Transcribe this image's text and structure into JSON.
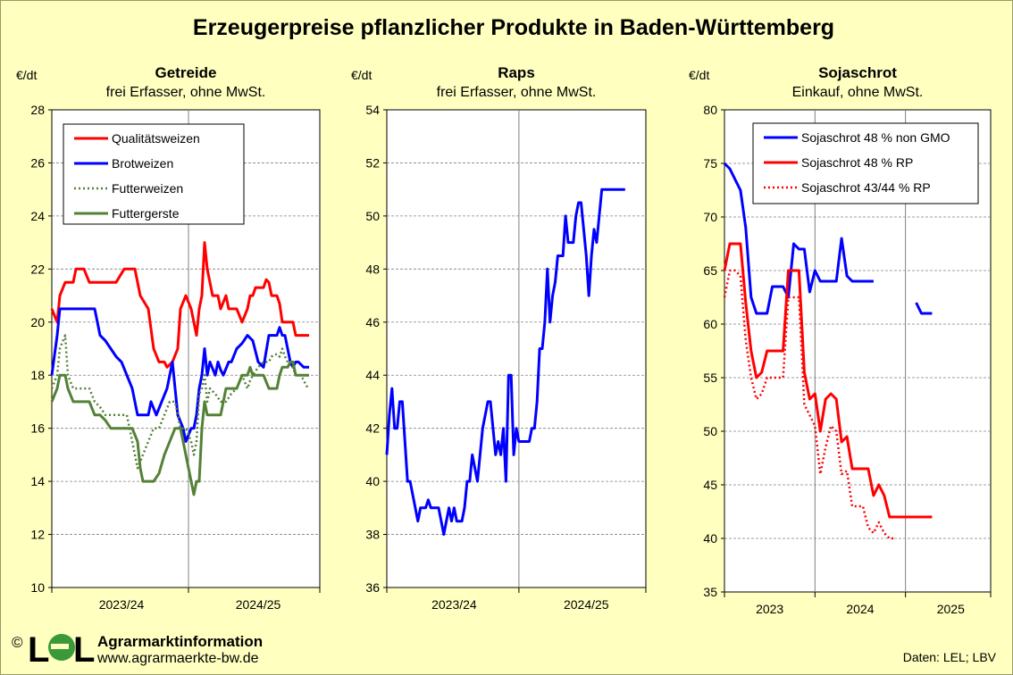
{
  "title": "Erzeugerpreise pflanzlicher Produkte in Baden-Württemberg",
  "footer": {
    "copyright": "©",
    "logo_left": "L",
    "logo_right": "L",
    "org": "Agrarmarktinformation",
    "url": "www.agrarmaerkte-bw.de",
    "source": "Daten: LEL; LBV"
  },
  "colors": {
    "background": "#ffffc0",
    "plot_background": "#ffffff",
    "red": "#ff0000",
    "blue": "#0000ff",
    "green": "#538135",
    "logo_green": "#3a9a3a"
  },
  "chart_data": [
    {
      "type": "line",
      "title": "Getreide",
      "subtitle": "frei Erfasser, ohne MwSt.",
      "ylabel": "€/dt",
      "ylim": [
        10,
        28
      ],
      "yticks": [
        10,
        12,
        14,
        16,
        18,
        20,
        22,
        24,
        26,
        28
      ],
      "xlim": [
        0,
        100
      ],
      "categories": [
        {
          "label": "2023/24",
          "x": 26
        },
        {
          "label": "2024/25",
          "x": 77
        }
      ],
      "gridlines_x": [
        51
      ],
      "grid": true,
      "legend_position": "top-left",
      "series": [
        {
          "name": "Qualitätsweizen",
          "color": "#ff0000",
          "dash": "solid",
          "width": 3,
          "x": [
            0,
            2,
            3,
            5,
            8,
            9,
            12,
            14,
            17,
            18,
            21,
            24,
            27,
            31,
            33,
            36,
            38,
            40,
            42,
            43,
            45,
            47,
            48,
            50,
            52,
            53,
            54,
            55,
            56,
            57,
            58,
            60,
            62,
            63,
            65,
            66,
            68,
            69,
            71,
            73,
            74,
            75,
            76,
            78,
            79,
            80,
            81,
            82,
            84,
            85,
            86,
            87,
            88,
            89,
            90,
            91,
            93,
            94,
            95,
            96
          ],
          "y": [
            20.5,
            20,
            21,
            21.5,
            21.5,
            22,
            22,
            21.5,
            21.5,
            21.5,
            21.5,
            21.5,
            22,
            22,
            21,
            20.5,
            19,
            18.5,
            18.5,
            18.3,
            18.5,
            19,
            20.5,
            21,
            20.5,
            20,
            19.5,
            20.5,
            21,
            23,
            22,
            21,
            21,
            20.5,
            21,
            20.5,
            20.5,
            20.5,
            20,
            20.5,
            21,
            21,
            21.3,
            21.3,
            21.3,
            21.6,
            21.5,
            21,
            21,
            20.7,
            20,
            20,
            20,
            20,
            20,
            19.5,
            19.5,
            19.5,
            19.5,
            19.5
          ]
        },
        {
          "name": "Brotweizen",
          "color": "#0000ff",
          "dash": "solid",
          "width": 3,
          "x": [
            0,
            2,
            3,
            5,
            8,
            9,
            12,
            14,
            16,
            18,
            20,
            22,
            24,
            26,
            28,
            30,
            32,
            34,
            36,
            37,
            39,
            41,
            43,
            45,
            47,
            49,
            50,
            52,
            53,
            54,
            55,
            56,
            57,
            58,
            59,
            61,
            62,
            63,
            64,
            66,
            67,
            69,
            71,
            73,
            75,
            77,
            79,
            81,
            82,
            84,
            85,
            86,
            87,
            88,
            89,
            90,
            91,
            92,
            94,
            95,
            96
          ],
          "y": [
            18,
            19.5,
            20.5,
            20.5,
            20.5,
            20.5,
            20.5,
            20.5,
            20.5,
            19.5,
            19.3,
            19,
            18.7,
            18.5,
            18,
            17.5,
            16.5,
            16.5,
            16.5,
            17,
            16.5,
            17,
            17.5,
            18.5,
            16.5,
            16,
            15.5,
            16,
            16,
            16.5,
            17.5,
            18,
            19,
            18,
            18.5,
            18,
            18.5,
            18.2,
            18,
            18.5,
            18.5,
            19,
            19.2,
            19.5,
            19.3,
            18.5,
            18.3,
            19.5,
            19.5,
            19.5,
            19.8,
            19.5,
            19.5,
            19,
            18.5,
            18.3,
            18.5,
            18.5,
            18.3,
            18.3,
            18.3
          ]
        },
        {
          "name": "Futterweizen",
          "color": "#538135",
          "dash": "dotted",
          "width": 2.5,
          "x": [
            0,
            2,
            3,
            5,
            6,
            8,
            9,
            12,
            14,
            16,
            18,
            20,
            22,
            24,
            26,
            28,
            30,
            32,
            34,
            36,
            38,
            40,
            42,
            44,
            46,
            48,
            50,
            52,
            53,
            54,
            55,
            56,
            57,
            58,
            59,
            61,
            63,
            65,
            67,
            69,
            71,
            73,
            74,
            75,
            77,
            79,
            81,
            82,
            84,
            85,
            86,
            87,
            88,
            89,
            90,
            91,
            93,
            94,
            95,
            96
          ],
          "y": [
            17.5,
            18,
            19,
            19.5,
            18,
            17.5,
            17.5,
            17.5,
            17.5,
            17,
            16.8,
            16.5,
            16.5,
            16.5,
            16.5,
            16.5,
            15.5,
            14.5,
            15,
            15.5,
            16,
            16,
            16.5,
            17,
            17,
            16,
            16,
            15.5,
            15,
            15.5,
            17.3,
            17.5,
            18,
            17,
            17.5,
            17.3,
            17,
            17,
            17.3,
            17.5,
            18,
            17.5,
            17.8,
            18,
            18.3,
            18.5,
            18.5,
            18.7,
            18.8,
            18.7,
            19,
            18.7,
            18.5,
            18.3,
            18.3,
            18,
            18,
            17.8,
            17.6,
            17.5
          ]
        },
        {
          "name": "Futtergerste",
          "color": "#538135",
          "dash": "solid",
          "width": 3,
          "x": [
            0,
            2,
            3,
            5,
            6,
            8,
            9,
            12,
            14,
            16,
            18,
            20,
            22,
            24,
            26,
            28,
            30,
            32,
            33,
            34,
            36,
            38,
            40,
            42,
            44,
            46,
            48,
            49,
            50,
            52,
            53,
            54,
            55,
            56,
            57,
            58,
            59,
            61,
            63,
            65,
            67,
            69,
            71,
            73,
            74,
            75,
            77,
            79,
            81,
            82,
            84,
            85,
            86,
            87,
            88,
            89,
            90,
            91,
            93,
            94,
            95,
            96
          ],
          "y": [
            17,
            17.5,
            18,
            18,
            17.5,
            17,
            17,
            17,
            17,
            16.5,
            16.5,
            16.3,
            16,
            16,
            16,
            16,
            16,
            15.5,
            14.5,
            14,
            14,
            14,
            14.3,
            15,
            15.5,
            16,
            16,
            15.5,
            15,
            14,
            13.5,
            14,
            14,
            16,
            17,
            16.5,
            16.5,
            16.5,
            16.5,
            17.5,
            17.5,
            17.5,
            18,
            18,
            18.3,
            18,
            18,
            18,
            17.5,
            17.5,
            17.5,
            18,
            18.3,
            18.3,
            18.3,
            18.5,
            18.5,
            18,
            18,
            18,
            18,
            18
          ]
        }
      ]
    },
    {
      "type": "line",
      "title": "Raps",
      "subtitle": "frei Erfasser, ohne MwSt.",
      "ylabel": "€/dt",
      "ylim": [
        36,
        54
      ],
      "yticks": [
        36,
        38,
        40,
        42,
        44,
        46,
        48,
        50,
        52,
        54
      ],
      "xlim": [
        0,
        100
      ],
      "categories": [
        {
          "label": "2023/24",
          "x": 26
        },
        {
          "label": "2024/25",
          "x": 77
        }
      ],
      "gridlines_x": [
        51
      ],
      "grid": true,
      "series": [
        {
          "name": "",
          "color": "#0000ff",
          "dash": "solid",
          "width": 3,
          "x": [
            0,
            1,
            2,
            3,
            4,
            5,
            6,
            7,
            8,
            9,
            10,
            11,
            12,
            13,
            14,
            15,
            16,
            17,
            18,
            20,
            21,
            22,
            23,
            24,
            25,
            26,
            27,
            28,
            29,
            30,
            31,
            32,
            33,
            34,
            35,
            36,
            37,
            38,
            39,
            40,
            41,
            42,
            43,
            44,
            45,
            46,
            47,
            48,
            49,
            50,
            51,
            52,
            53,
            54,
            55,
            56,
            57,
            58,
            59,
            60,
            61,
            62,
            63,
            64,
            65,
            66,
            67,
            68,
            69,
            70,
            71,
            72,
            73,
            74,
            75,
            76,
            77,
            78,
            79,
            80,
            81,
            82,
            83,
            84,
            85,
            86,
            87,
            88,
            89,
            90,
            91,
            92
          ],
          "y": [
            41,
            42.5,
            43.5,
            42,
            42,
            43,
            43,
            41.5,
            40,
            40,
            39.5,
            39,
            38.5,
            39,
            39,
            39,
            39.3,
            39,
            39,
            39,
            38.5,
            38,
            38.5,
            39,
            38.5,
            39,
            38.5,
            38.5,
            38.5,
            39,
            40,
            40,
            41,
            40.5,
            40,
            41,
            42,
            42.5,
            43,
            43,
            42,
            41,
            41.5,
            41,
            42,
            40,
            44,
            44,
            41,
            42,
            41.5,
            41.5,
            41.5,
            41.5,
            41.5,
            42,
            42,
            43,
            45,
            45,
            46,
            48,
            46,
            47,
            47.5,
            48.5,
            48.5,
            48.5,
            50,
            49,
            49,
            49,
            50,
            50.5,
            50.5,
            49.5,
            48.5,
            47,
            48.5,
            49.5,
            49,
            50,
            51,
            51,
            51,
            51,
            51,
            51,
            51,
            51,
            51,
            51
          ]
        }
      ]
    },
    {
      "type": "line",
      "title": "Sojaschrot",
      "subtitle": "Einkauf, ohne MwSt.",
      "ylabel": "€/dt",
      "ylim": [
        35,
        80
      ],
      "yticks": [
        35,
        40,
        45,
        50,
        55,
        60,
        65,
        70,
        75,
        80
      ],
      "xlim": [
        0,
        100
      ],
      "categories": [
        {
          "label": "2023",
          "x": 17
        },
        {
          "label": "2024",
          "x": 51
        },
        {
          "label": "2025",
          "x": 85
        }
      ],
      "gridlines_x": [
        34,
        68
      ],
      "grid": true,
      "legend_position": "top-right",
      "series": [
        {
          "name": "Sojaschrot 48 % non GMO",
          "color": "#0000ff",
          "dash": "solid",
          "width": 3,
          "x": [
            0,
            2,
            4,
            6,
            8,
            10,
            12,
            14,
            16,
            18,
            20,
            22,
            24,
            26,
            28,
            30,
            32,
            34,
            36,
            38,
            40,
            42,
            44,
            46,
            48,
            50,
            52,
            54,
            56,
            null,
            72,
            74,
            76,
            78
          ],
          "y": [
            75,
            74.5,
            73.5,
            72.5,
            69,
            62.5,
            61,
            61,
            61,
            63.5,
            63.5,
            63.5,
            62.5,
            67.5,
            67,
            67,
            63,
            65,
            64,
            64,
            64,
            64,
            68,
            64.5,
            64,
            64,
            64,
            64,
            64,
            null,
            62,
            61,
            61,
            61
          ]
        },
        {
          "name": "Sojaschrot 48 % RP",
          "color": "#ff0000",
          "dash": "solid",
          "width": 3,
          "x": [
            0,
            2,
            4,
            6,
            8,
            10,
            12,
            14,
            16,
            18,
            20,
            22,
            24,
            26,
            28,
            30,
            32,
            34,
            36,
            38,
            40,
            42,
            44,
            46,
            48,
            50,
            52,
            54,
            56,
            58,
            60,
            62,
            64,
            66,
            68,
            70,
            72,
            74,
            76,
            78
          ],
          "y": [
            65,
            67.5,
            67.5,
            67.5,
            62,
            57.5,
            55,
            55.5,
            57.5,
            57.5,
            57.5,
            57.5,
            65,
            65,
            65,
            55.5,
            53,
            53.5,
            50,
            53,
            53.5,
            53,
            49,
            49.5,
            46.5,
            46.5,
            46.5,
            46.5,
            44,
            45,
            44,
            42,
            42,
            42,
            42,
            42,
            42,
            42,
            42,
            42
          ]
        },
        {
          "name": "Sojaschrot 43/44 % RP",
          "color": "#ff0000",
          "dash": "dotted",
          "width": 2.5,
          "x": [
            0,
            2,
            4,
            6,
            8,
            10,
            12,
            14,
            16,
            18,
            20,
            22,
            24,
            26,
            28,
            30,
            32,
            34,
            36,
            38,
            40,
            42,
            44,
            46,
            48,
            50,
            52,
            54,
            56,
            58,
            60,
            62,
            64
          ],
          "y": [
            62.5,
            65,
            65,
            64.5,
            58.5,
            55,
            53,
            53.5,
            55,
            55,
            55,
            55,
            62.5,
            62.5,
            62.5,
            52.5,
            51.5,
            50.5,
            46,
            48.5,
            50.5,
            50,
            46,
            46.3,
            43,
            43,
            43,
            41,
            40.5,
            41.5,
            40.5,
            40,
            40
          ]
        }
      ]
    }
  ]
}
